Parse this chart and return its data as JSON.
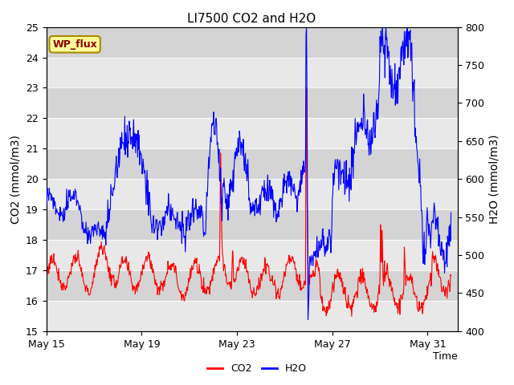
{
  "title": "LI7500 CO2 and H2O",
  "xlabel": "Time",
  "ylabel_left": "CO2 (mmol/m3)",
  "ylabel_right": "H2O (mmol/m3)",
  "ylim_left": [
    15.0,
    25.0
  ],
  "ylim_right": [
    400,
    800
  ],
  "yticks_left": [
    15.0,
    16.0,
    17.0,
    18.0,
    19.0,
    20.0,
    21.0,
    22.0,
    23.0,
    24.0,
    25.0
  ],
  "yticks_right": [
    400,
    450,
    500,
    550,
    600,
    650,
    700,
    750,
    800
  ],
  "xtick_labels": [
    "May 15",
    "May 19",
    "May 23",
    "May 27",
    "May 31"
  ],
  "legend_labels": [
    "CO2",
    "H2O"
  ],
  "legend_colors": [
    "red",
    "blue"
  ],
  "annotation_text": "WP_flux",
  "annotation_bg": "#ffff99",
  "annotation_border": "#aa8800",
  "bg_color_light": "#e8e8e8",
  "bg_color_dark": "#d4d4d4",
  "title_fontsize": 11,
  "axis_fontsize": 10,
  "tick_fontsize": 9
}
